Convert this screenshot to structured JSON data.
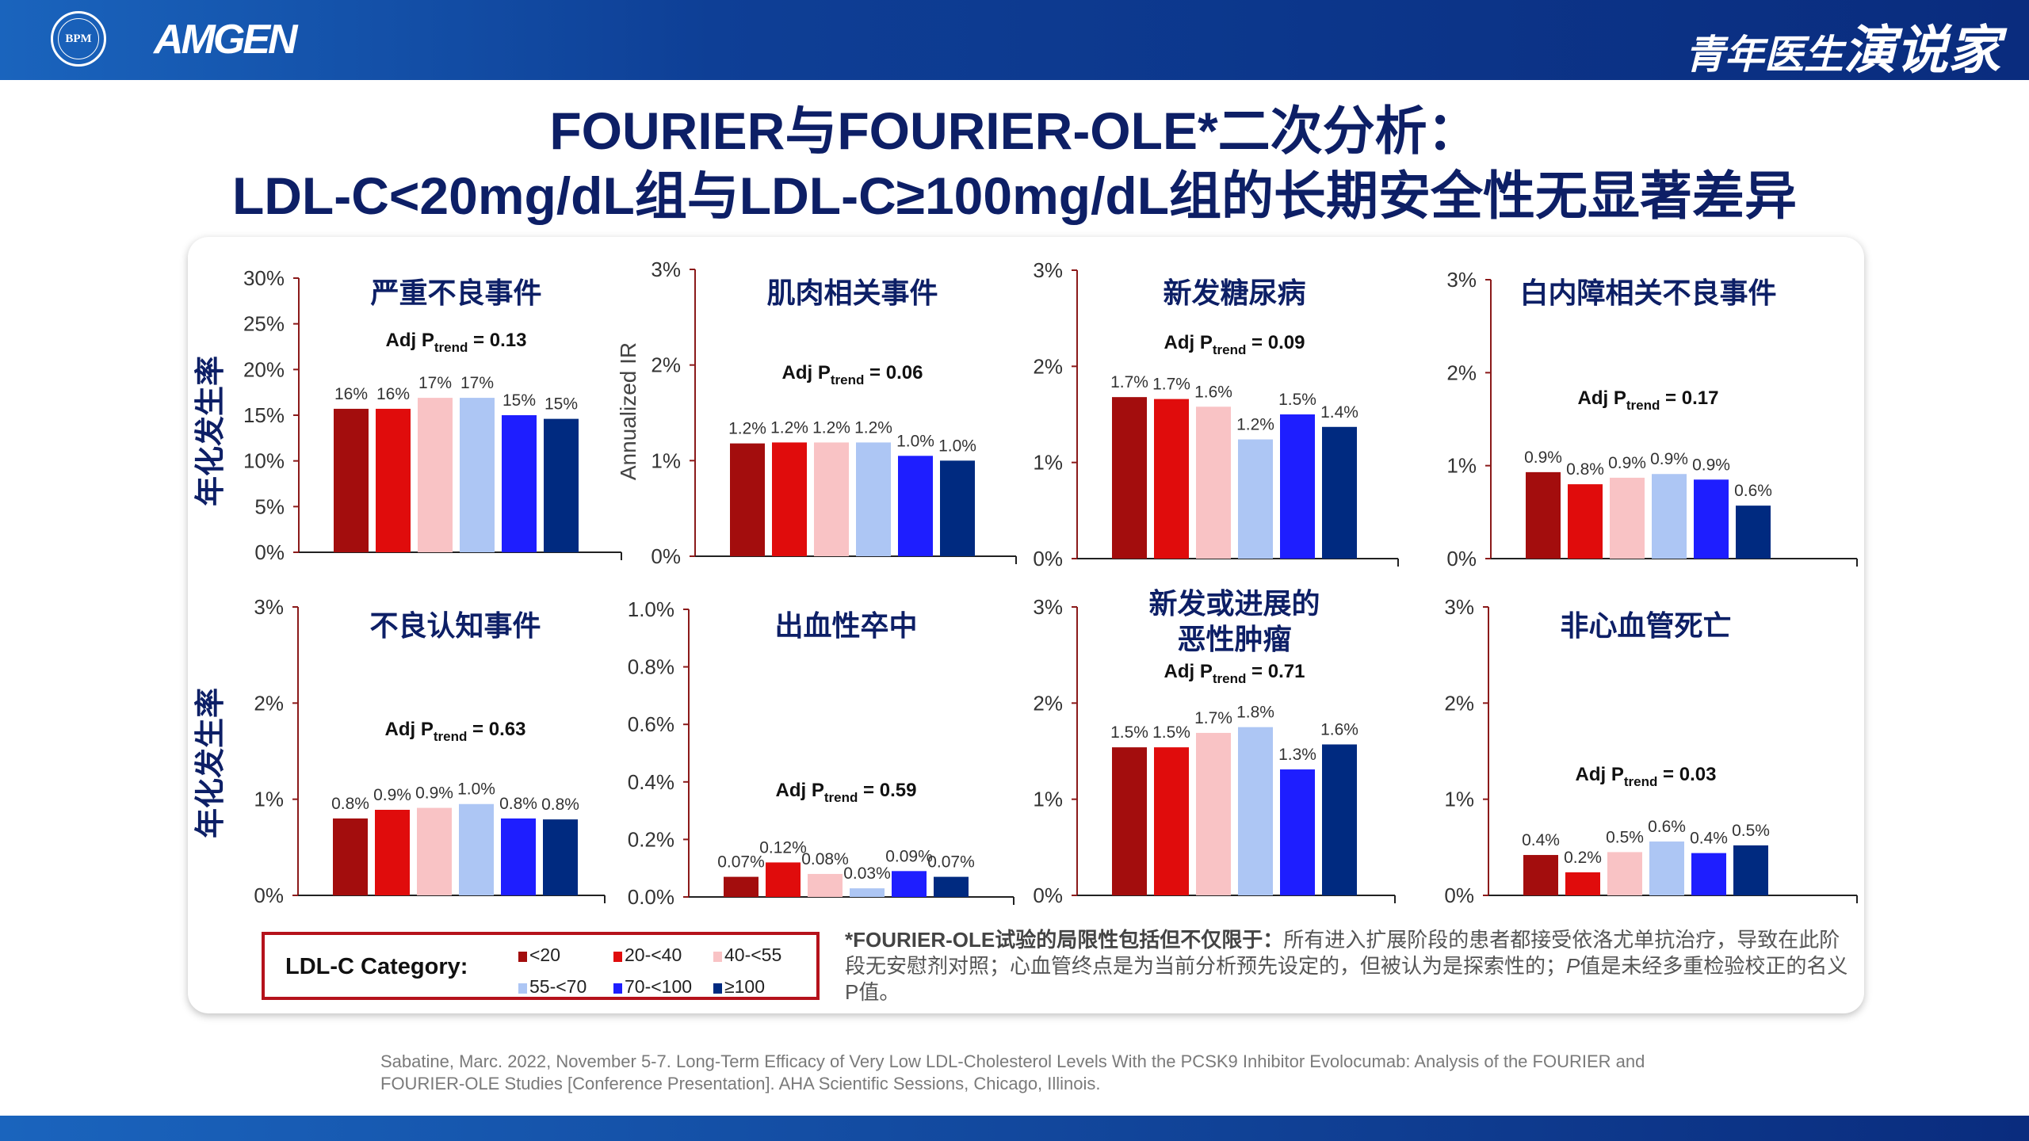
{
  "header": {
    "bpm_logo": "BPM",
    "amgen_logo": "AMGEN",
    "brand_part1": "青年医生",
    "brand_part2": "演说家"
  },
  "title": {
    "line1": "FOURIER与FOURIER-OLE*二次分析：",
    "line2": "LDL-C<20mg/dL组与LDL-C≥100mg/dL组的长期安全性无显著差异"
  },
  "axis_labels": {
    "annual_rate": "年化发生率",
    "annualized_ir": "Annualized IR"
  },
  "p_label": {
    "prefix": "Adj P",
    "sub": "trend",
    "eq": " = "
  },
  "colors": [
    "#a30d0d",
    "#e00c0c",
    "#f9c3c5",
    "#adc6f4",
    "#1e1eff",
    "#002a80"
  ],
  "legend": {
    "title": "LDL-C Category:",
    "items": [
      "<20",
      "20-<40",
      "40-<55",
      "55-<70",
      "70-<100",
      "≥100"
    ]
  },
  "chart_data": [
    {
      "type": "bar",
      "title": [
        "严重不良事件"
      ],
      "p_trend": "0.13",
      "ylim": [
        0,
        30
      ],
      "yticks": [
        "0%",
        "5%",
        "10%",
        "15%",
        "20%",
        "25%",
        "30%"
      ],
      "tick_values": [
        0,
        5,
        10,
        15,
        20,
        25,
        30
      ],
      "categories": [
        "<20",
        "20-<40",
        "40-<55",
        "55-<70",
        "70-<100",
        "≥100"
      ],
      "values": [
        15.7,
        15.7,
        16.9,
        16.9,
        15.0,
        14.6
      ],
      "value_labels": [
        "16%",
        "16%",
        "17%",
        "17%",
        "15%",
        "15%"
      ]
    },
    {
      "type": "bar",
      "title": [
        "肌肉相关事件"
      ],
      "p_trend": "0.06",
      "ylim": [
        0,
        3
      ],
      "yticks": [
        "0%",
        "1%",
        "2%",
        "3%"
      ],
      "tick_values": [
        0,
        1,
        2,
        3
      ],
      "categories": [
        "<20",
        "20-<40",
        "40-<55",
        "55-<70",
        "70-<100",
        "≥100"
      ],
      "values": [
        1.18,
        1.19,
        1.19,
        1.19,
        1.05,
        1.0
      ],
      "value_labels": [
        "1.2%",
        "1.2%",
        "1.2%",
        "1.2%",
        "1.0%",
        "1.0%"
      ]
    },
    {
      "type": "bar",
      "title": [
        "新发糖尿病"
      ],
      "p_trend": "0.09",
      "ylim": [
        0,
        3
      ],
      "yticks": [
        "0%",
        "1%",
        "2%",
        "3%"
      ],
      "tick_values": [
        0,
        1,
        2,
        3
      ],
      "categories": [
        "<20",
        "20-<40",
        "40-<55",
        "55-<70",
        "70-<100",
        "≥100"
      ],
      "values": [
        1.68,
        1.66,
        1.58,
        1.24,
        1.5,
        1.37
      ],
      "value_labels": [
        "1.7%",
        "1.7%",
        "1.6%",
        "1.2%",
        "1.5%",
        "1.4%"
      ]
    },
    {
      "type": "bar",
      "title": [
        "白内障相关不良事件"
      ],
      "p_trend": "0.17",
      "ylim": [
        0,
        3
      ],
      "yticks": [
        "0%",
        "1%",
        "2%",
        "3%"
      ],
      "tick_values": [
        0,
        1,
        2,
        3
      ],
      "categories": [
        "<20",
        "20-<40",
        "40-<55",
        "55-<70",
        "70-<100",
        "≥100"
      ],
      "values": [
        0.93,
        0.8,
        0.87,
        0.91,
        0.85,
        0.57
      ],
      "value_labels": [
        "0.9%",
        "0.8%",
        "0.9%",
        "0.9%",
        "0.9%",
        "0.6%"
      ]
    },
    {
      "type": "bar",
      "title": [
        "不良认知事件"
      ],
      "p_trend": "0.63",
      "ylim": [
        0,
        3
      ],
      "yticks": [
        "0%",
        "1%",
        "2%",
        "3%"
      ],
      "tick_values": [
        0,
        1,
        2,
        3
      ],
      "categories": [
        "<20",
        "20-<40",
        "40-<55",
        "55-<70",
        "70-<100",
        "≥100"
      ],
      "values": [
        0.8,
        0.89,
        0.91,
        0.95,
        0.8,
        0.79
      ],
      "value_labels": [
        "0.8%",
        "0.9%",
        "0.9%",
        "1.0%",
        "0.8%",
        "0.8%"
      ]
    },
    {
      "type": "bar",
      "title": [
        "出血性卒中"
      ],
      "p_trend": "0.59",
      "ylim": [
        0,
        1
      ],
      "yticks": [
        "0.0%",
        "0.2%",
        "0.4%",
        "0.6%",
        "0.8%",
        "1.0%"
      ],
      "tick_values": [
        0,
        0.2,
        0.4,
        0.6,
        0.8,
        1.0
      ],
      "categories": [
        "<20",
        "20-<40",
        "40-<55",
        "55-<70",
        "70-<100",
        "≥100"
      ],
      "values": [
        0.07,
        0.12,
        0.08,
        0.03,
        0.09,
        0.07
      ],
      "value_labels": [
        "0.07%",
        "0.12%",
        "0.08%",
        "0.03%",
        "0.09%",
        "0.07%"
      ]
    },
    {
      "type": "bar",
      "title": [
        "新发或进展的",
        "恶性肿瘤"
      ],
      "p_trend": "0.71",
      "ylim": [
        0,
        3
      ],
      "yticks": [
        "0%",
        "1%",
        "2%",
        "3%"
      ],
      "tick_values": [
        0,
        1,
        2,
        3
      ],
      "categories": [
        "<20",
        "20-<40",
        "40-<55",
        "55-<70",
        "70-<100",
        "≥100"
      ],
      "values": [
        1.54,
        1.54,
        1.69,
        1.75,
        1.31,
        1.57
      ],
      "value_labels": [
        "1.5%",
        "1.5%",
        "1.7%",
        "1.8%",
        "1.3%",
        "1.6%"
      ]
    },
    {
      "type": "bar",
      "title": [
        "非心血管死亡"
      ],
      "p_trend": "0.03",
      "ylim": [
        0,
        3
      ],
      "yticks": [
        "0%",
        "1%",
        "2%",
        "3%"
      ],
      "tick_values": [
        0,
        1,
        2,
        3
      ],
      "categories": [
        "<20",
        "20-<40",
        "40-<55",
        "55-<70",
        "70-<100",
        "≥100"
      ],
      "values": [
        0.42,
        0.24,
        0.45,
        0.56,
        0.44,
        0.52
      ],
      "value_labels": [
        "0.4%",
        "0.2%",
        "0.5%",
        "0.6%",
        "0.4%",
        "0.5%"
      ]
    }
  ],
  "footnote": {
    "bold": "*FOURIER-OLE试验的局限性包括但不仅限于：",
    "text1": "所有进入扩展阶段的患者都接受依洛尤单抗治疗，导致在此阶段无安慰剂对照；心血管终点是为当前分析预先设定的，但被认为是探索性的；",
    "p_italic": "P",
    "text2": "值是未经多重检验校正的名义P值。"
  },
  "citation": "Sabatine, Marc. 2022, November 5-7. Long-Term Efficacy of Very Low LDL-Cholesterol Levels With the PCSK9 Inhibitor Evolocumab: Analysis of the FOURIER and FOURIER-OLE Studies [Conference Presentation]. AHA Scientific Sessions, Chicago, Illinois."
}
